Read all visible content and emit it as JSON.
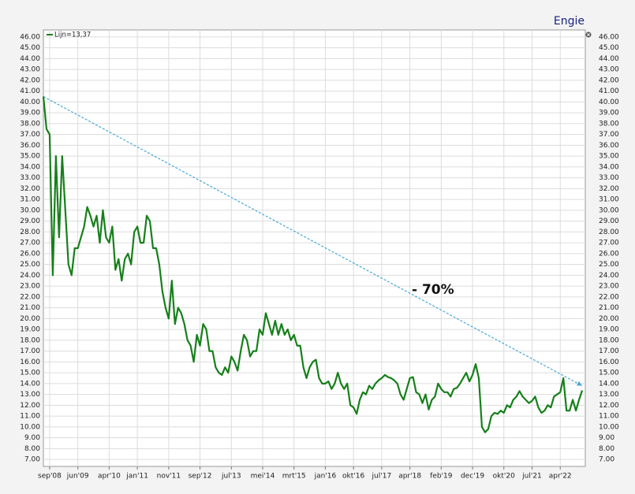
{
  "chart_data": {
    "type": "line",
    "title": "Engie",
    "annotation": "- 70%",
    "xlim": [
      "2008-07",
      "2022-12"
    ],
    "ylim": [
      6.35,
      46.65
    ],
    "xticks": [
      {
        "value": "2008-09",
        "label": "sep'08"
      },
      {
        "value": "2009-06",
        "label": "jun'09"
      },
      {
        "value": "2010-04",
        "label": "apr'10"
      },
      {
        "value": "2011-01",
        "label": "jan'11"
      },
      {
        "value": "2011-11",
        "label": "nov'11"
      },
      {
        "value": "2012-09",
        "label": "sep'12"
      },
      {
        "value": "2013-07",
        "label": "jul'13"
      },
      {
        "value": "2014-05",
        "label": "mei'14"
      },
      {
        "value": "2015-03",
        "label": "mrt'15"
      },
      {
        "value": "2016-01",
        "label": "jan'16"
      },
      {
        "value": "2016-10",
        "label": "okt'16"
      },
      {
        "value": "2017-07",
        "label": "jul'17"
      },
      {
        "value": "2018-04",
        "label": "apr'18"
      },
      {
        "value": "2019-02",
        "label": "feb'19"
      },
      {
        "value": "2019-12",
        "label": "dec'19"
      },
      {
        "value": "2020-10",
        "label": "okt'20"
      },
      {
        "value": "2021-07",
        "label": "jul'21"
      },
      {
        "value": "2022-04",
        "label": "apr'22"
      }
    ],
    "yticks": [
      {
        "value": 7,
        "label": "7.00"
      },
      {
        "value": 8,
        "label": "8.00"
      },
      {
        "value": 9,
        "label": "9.00"
      },
      {
        "value": 10,
        "label": "10.00"
      },
      {
        "value": 11,
        "label": "11.00"
      },
      {
        "value": 12,
        "label": "12.00"
      },
      {
        "value": 13,
        "label": "13.00"
      },
      {
        "value": 14,
        "label": "14.00"
      },
      {
        "value": 15,
        "label": "15.00"
      },
      {
        "value": 16,
        "label": "16.00"
      },
      {
        "value": 17,
        "label": "17.00"
      },
      {
        "value": 18,
        "label": "18.00"
      },
      {
        "value": 19,
        "label": "19.00"
      },
      {
        "value": 20,
        "label": "20.00"
      },
      {
        "value": 21,
        "label": "21.00"
      },
      {
        "value": 22,
        "label": "22.00"
      },
      {
        "value": 23,
        "label": "23.00"
      },
      {
        "value": 24,
        "label": "24.00"
      },
      {
        "value": 25,
        "label": "25.00"
      },
      {
        "value": 26,
        "label": "26.00"
      },
      {
        "value": 27,
        "label": "27.00"
      },
      {
        "value": 28,
        "label": "28.00"
      },
      {
        "value": 29,
        "label": "29.00"
      },
      {
        "value": 30,
        "label": "30.00"
      },
      {
        "value": 31,
        "label": "31.00"
      },
      {
        "value": 32,
        "label": "32.00"
      },
      {
        "value": 33,
        "label": "33.00"
      },
      {
        "value": 34,
        "label": "34.00"
      },
      {
        "value": 35,
        "label": "35.00"
      },
      {
        "value": 36,
        "label": "36.00"
      },
      {
        "value": 37,
        "label": "37.00"
      },
      {
        "value": 38,
        "label": "38.00"
      },
      {
        "value": 39,
        "label": "39.00"
      },
      {
        "value": 40,
        "label": "40.00"
      },
      {
        "value": 41,
        "label": "41.00"
      },
      {
        "value": 42,
        "label": "42.00"
      },
      {
        "value": 43,
        "label": "43.00"
      },
      {
        "value": 44,
        "label": "44.00"
      },
      {
        "value": 45,
        "label": "45.00"
      },
      {
        "value": 46,
        "label": "46.00"
      }
    ],
    "grid": true,
    "x": [
      "2008-07",
      "2008-08",
      "2008-09",
      "2008-10",
      "2008-11",
      "2008-12",
      "2009-01",
      "2009-02",
      "2009-03",
      "2009-04",
      "2009-05",
      "2009-06",
      "2009-07",
      "2009-08",
      "2009-09",
      "2009-10",
      "2009-11",
      "2009-12",
      "2010-01",
      "2010-02",
      "2010-03",
      "2010-04",
      "2010-05",
      "2010-06",
      "2010-07",
      "2010-08",
      "2010-09",
      "2010-10",
      "2010-11",
      "2010-12",
      "2011-01",
      "2011-02",
      "2011-03",
      "2011-04",
      "2011-05",
      "2011-06",
      "2011-07",
      "2011-08",
      "2011-09",
      "2011-10",
      "2011-11",
      "2011-12",
      "2012-01",
      "2012-02",
      "2012-03",
      "2012-04",
      "2012-05",
      "2012-06",
      "2012-07",
      "2012-08",
      "2012-09",
      "2012-10",
      "2012-11",
      "2012-12",
      "2013-01",
      "2013-02",
      "2013-03",
      "2013-04",
      "2013-05",
      "2013-06",
      "2013-07",
      "2013-08",
      "2013-09",
      "2013-10",
      "2013-11",
      "2013-12",
      "2014-01",
      "2014-02",
      "2014-03",
      "2014-04",
      "2014-05",
      "2014-06",
      "2014-07",
      "2014-08",
      "2014-09",
      "2014-10",
      "2014-11",
      "2014-12",
      "2015-01",
      "2015-02",
      "2015-03",
      "2015-04",
      "2015-05",
      "2015-06",
      "2015-07",
      "2015-08",
      "2015-09",
      "2015-10",
      "2015-11",
      "2015-12",
      "2016-01",
      "2016-02",
      "2016-03",
      "2016-04",
      "2016-05",
      "2016-06",
      "2016-07",
      "2016-08",
      "2016-09",
      "2016-10",
      "2016-11",
      "2016-12",
      "2017-01",
      "2017-02",
      "2017-03",
      "2017-04",
      "2017-05",
      "2017-06",
      "2017-07",
      "2017-08",
      "2017-09",
      "2017-10",
      "2017-11",
      "2017-12",
      "2018-01",
      "2018-02",
      "2018-03",
      "2018-04",
      "2018-05",
      "2018-06",
      "2018-07",
      "2018-08",
      "2018-09",
      "2018-10",
      "2018-11",
      "2018-12",
      "2019-01",
      "2019-02",
      "2019-03",
      "2019-04",
      "2019-05",
      "2019-06",
      "2019-07",
      "2019-08",
      "2019-09",
      "2019-10",
      "2019-11",
      "2019-12",
      "2020-01",
      "2020-02",
      "2020-03",
      "2020-04",
      "2020-05",
      "2020-06",
      "2020-07",
      "2020-08",
      "2020-09",
      "2020-10",
      "2020-11",
      "2020-12",
      "2021-01",
      "2021-02",
      "2021-03",
      "2021-04",
      "2021-05",
      "2021-06",
      "2021-07",
      "2021-08",
      "2021-09",
      "2021-10",
      "2021-11",
      "2021-12",
      "2022-01",
      "2022-02",
      "2022-03",
      "2022-04",
      "2022-05",
      "2022-06",
      "2022-07",
      "2022-08",
      "2022-09",
      "2022-10",
      "2022-11"
    ],
    "series": [
      {
        "name": "Lijn=13,37",
        "color": "#16801a",
        "values": [
          40.5,
          37.5,
          37,
          24,
          35,
          27.5,
          35,
          30,
          25,
          24,
          26.5,
          26.5,
          27.5,
          28.5,
          30.3,
          29.5,
          28.5,
          29.5,
          27,
          30,
          27.5,
          27,
          28.5,
          24.5,
          25.5,
          23.5,
          25.5,
          26,
          25,
          28,
          28.5,
          27,
          27,
          29.5,
          29,
          26.5,
          26.5,
          25,
          22.5,
          21,
          20,
          23.5,
          19.5,
          21,
          20.5,
          19.5,
          18,
          17.5,
          16,
          18.5,
          17.5,
          19.5,
          19,
          17,
          17,
          15.5,
          15,
          14.8,
          15.5,
          15,
          16.5,
          16,
          15.2,
          17,
          18.5,
          18,
          16.5,
          17,
          17,
          19,
          18.5,
          20.5,
          19.5,
          18.5,
          19.8,
          18.5,
          19.5,
          18.5,
          19,
          18,
          18.5,
          17.5,
          17.5,
          15.5,
          14.5,
          15.5,
          16,
          16.2,
          14.5,
          14,
          14,
          14.2,
          13.5,
          14,
          15,
          14,
          13.5,
          14,
          12,
          11.8,
          11.2,
          12.5,
          13.2,
          13,
          13.8,
          13.5,
          14,
          14.3,
          14.5,
          14.8,
          14.6,
          14.5,
          14.3,
          14,
          13,
          12.5,
          13.5,
          14.5,
          14.6,
          13.2,
          13,
          12.2,
          13,
          11.6,
          12.5,
          12.8,
          14,
          13.5,
          13.2,
          13.2,
          12.8,
          13.5,
          13.6,
          14,
          14.5,
          15,
          14.2,
          14.8,
          15.8,
          14.5,
          10,
          9.5,
          9.8,
          11,
          11.3,
          11.2,
          11.5,
          11.3,
          12,
          11.8,
          12.5,
          12.8,
          13.3,
          12.8,
          12.5,
          12.2,
          12.4,
          12.8,
          11.8,
          11.3,
          11.5,
          12,
          11.8,
          12.8,
          13,
          13.2,
          14.5,
          11.5,
          11.5,
          12.5,
          11.5,
          12.5,
          13.37
        ]
      }
    ],
    "trend": {
      "x": [
        "2008-07",
        "2022-11"
      ],
      "values": [
        40.5,
        13.8
      ],
      "color": "#45a8d8"
    }
  }
}
